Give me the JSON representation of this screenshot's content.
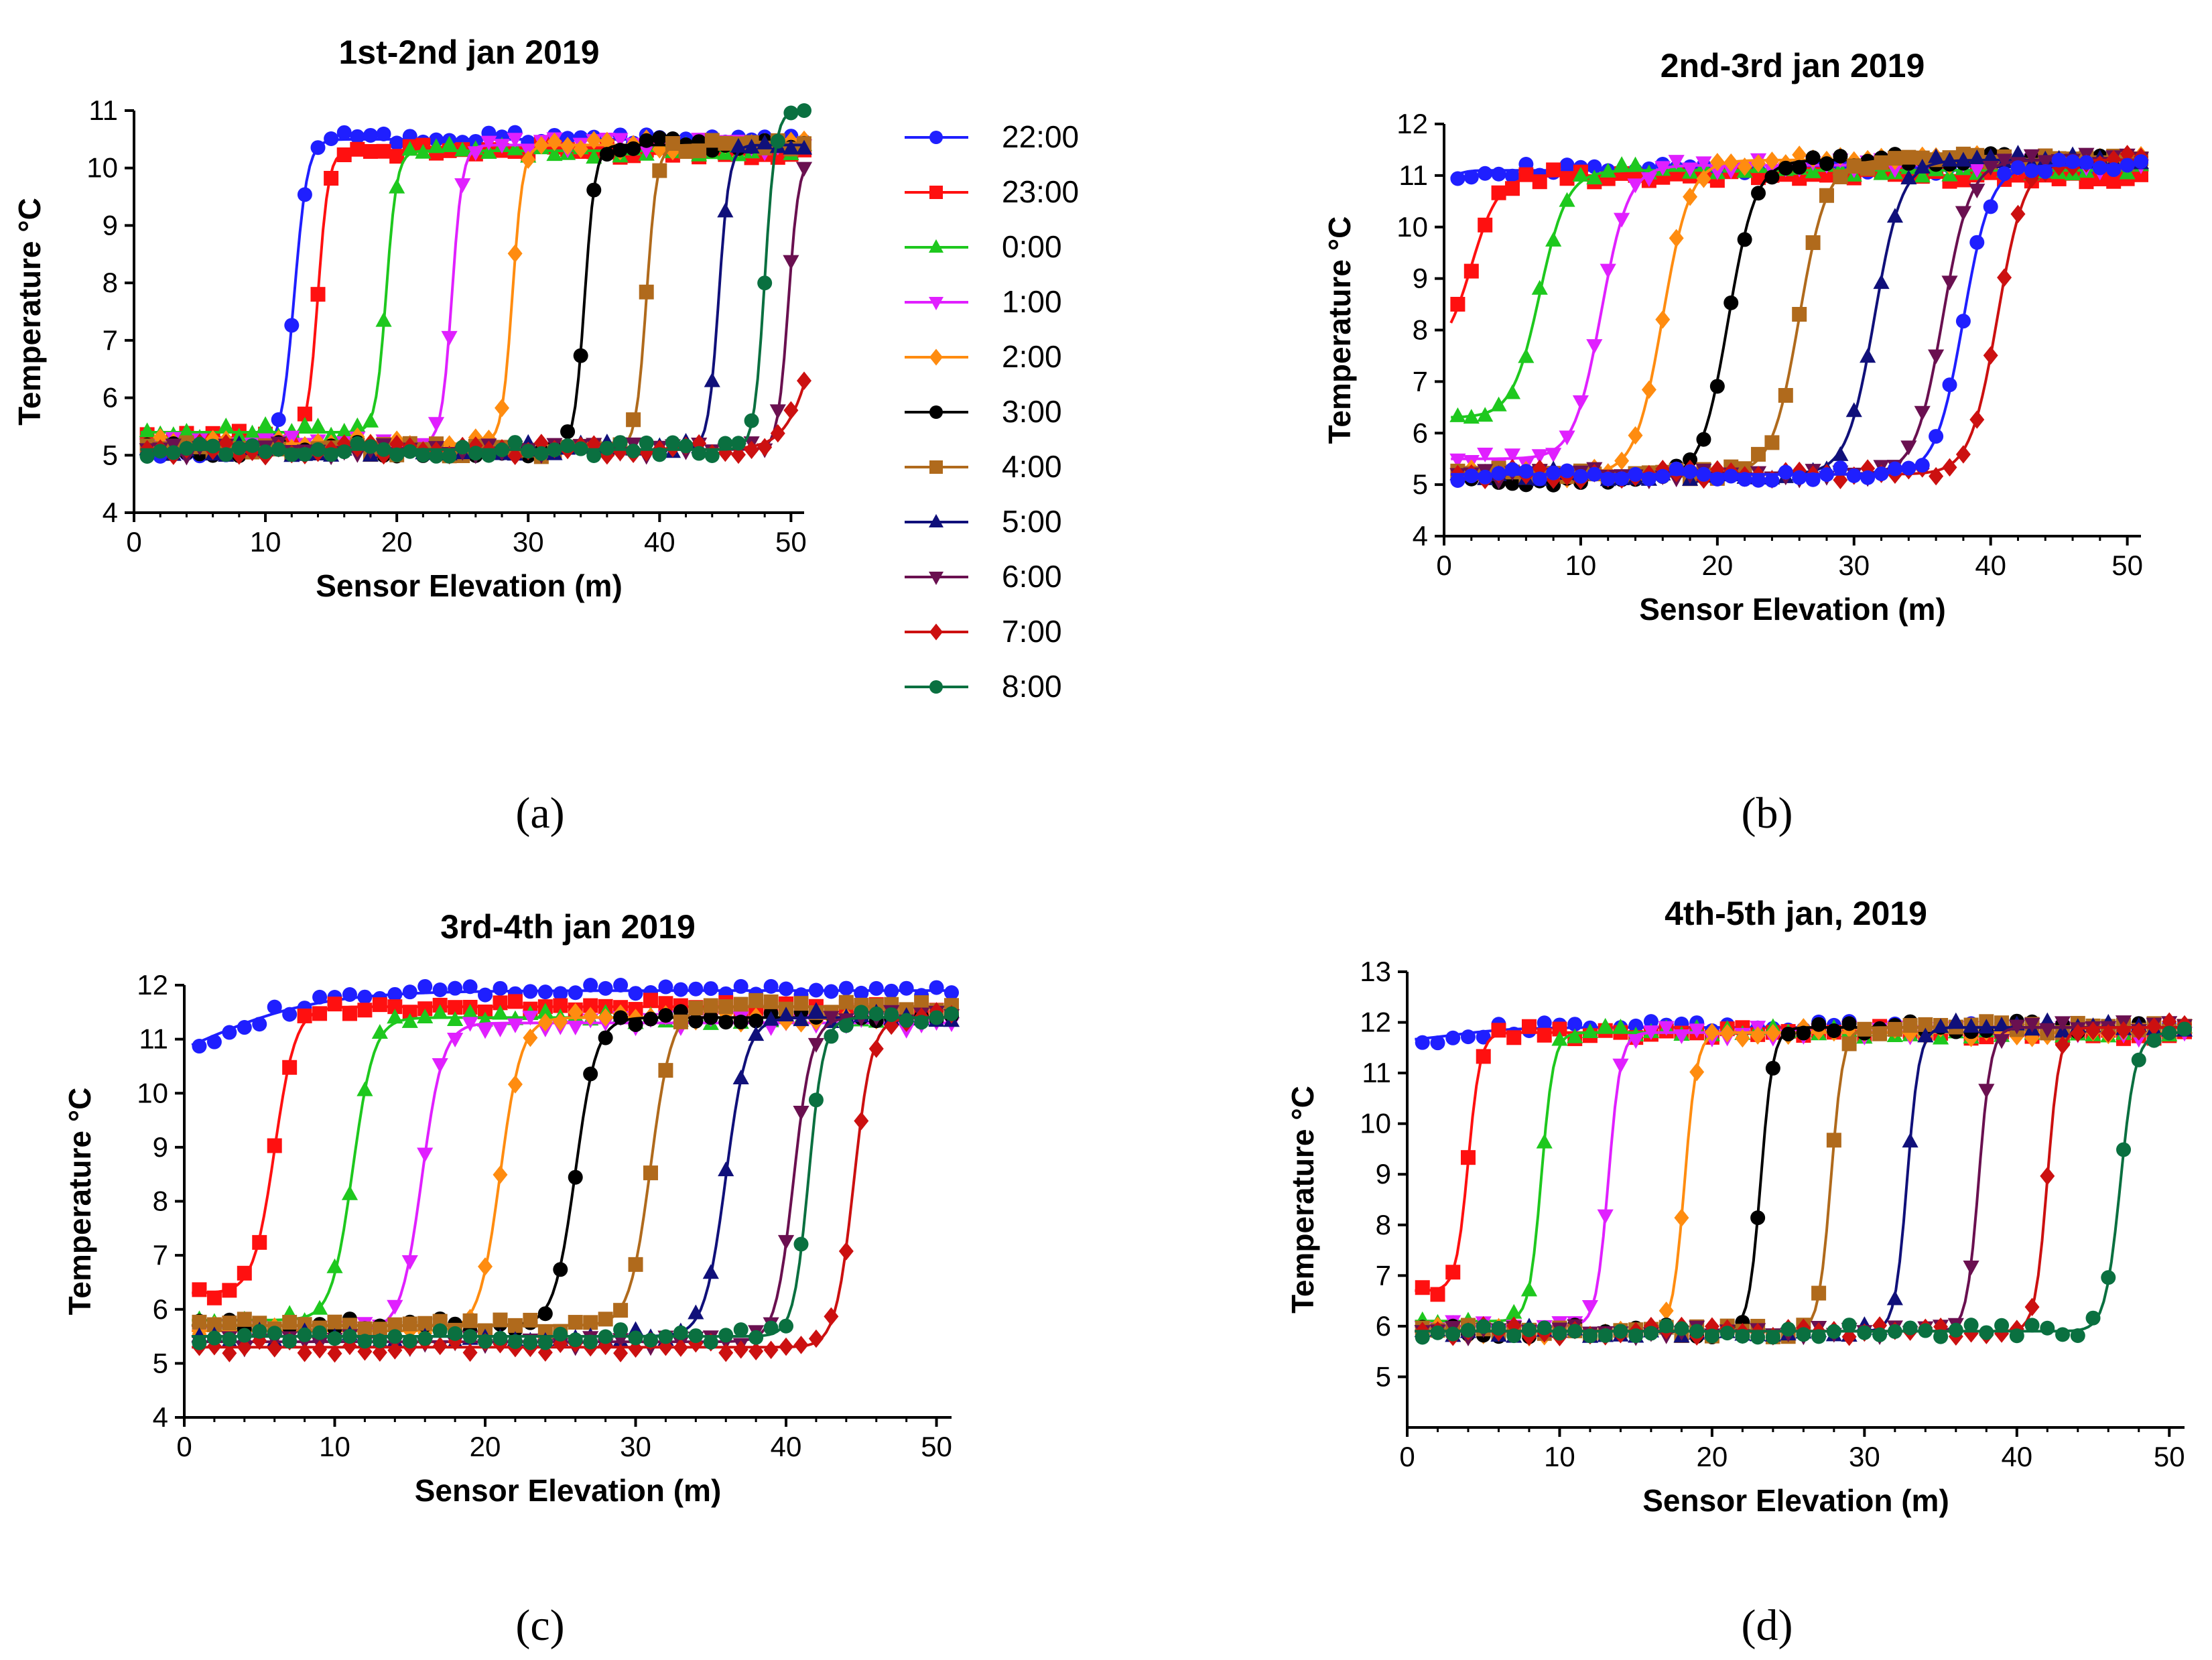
{
  "figure": {
    "captions": [
      "(a)",
      "(b)",
      "(c)",
      "(d)"
    ]
  },
  "chart_data": [
    {
      "panel": "a",
      "type": "scatter",
      "title": "1st-2nd jan 2019",
      "xlabel": "Sensor Elevation (m)",
      "ylabel": "Temperature °C",
      "xlim": [
        0,
        51
      ],
      "ylim": [
        4,
        11
      ],
      "xticks": [
        0,
        10,
        20,
        30,
        40,
        50
      ],
      "yticks": [
        4,
        5,
        6,
        7,
        8,
        9,
        10,
        11
      ],
      "legend_position": "right",
      "series": [
        {
          "name": "22:00",
          "color": "#1f1fff",
          "marker": "circle",
          "base": 5.1,
          "top": 10.5,
          "mid": 12.2,
          "width": 0.5
        },
        {
          "name": "23:00",
          "color": "#ff1010",
          "marker": "square",
          "base": 5.3,
          "top": 10.3,
          "mid": 14.0,
          "width": 0.4
        },
        {
          "name": "0:00",
          "color": "#1ec81e",
          "marker": "triangle-up",
          "base": 5.4,
          "top": 10.3,
          "mid": 19.2,
          "width": 0.4
        },
        {
          "name": "1:00",
          "color": "#e020ff",
          "marker": "triangle-down",
          "base": 5.2,
          "top": 10.4,
          "mid": 24.2,
          "width": 0.4
        },
        {
          "name": "2:00",
          "color": "#ff8c10",
          "marker": "diamond",
          "base": 5.2,
          "top": 10.4,
          "mid": 28.8,
          "width": 0.4
        },
        {
          "name": "3:00",
          "color": "#000000",
          "marker": "circle",
          "base": 5.1,
          "top": 10.4,
          "mid": 34.3,
          "width": 0.4
        },
        {
          "name": "4:00",
          "color": "#b06a1c",
          "marker": "square",
          "base": 5.1,
          "top": 10.4,
          "mid": 39.0,
          "width": 0.4
        },
        {
          "name": "5:00",
          "color": "#10107a",
          "marker": "triangle-up",
          "base": 5.1,
          "top": 10.4,
          "mid": 44.5,
          "width": 0.4
        },
        {
          "name": "6:00",
          "color": "#6a1050",
          "marker": "triangle-down",
          "base": 5.1,
          "top": 10.2,
          "mid": 49.8,
          "width": 0.4
        },
        {
          "name": "7:00",
          "color": "#cc1010",
          "marker": "diamond",
          "base": 5.1,
          "top": 10.2,
          "mid": 52.5,
          "width": 1.2
        },
        {
          "name": "8:00",
          "color": "#0a7040",
          "marker": "circle",
          "base": 5.1,
          "top": 11.0,
          "mid": 48.0,
          "width": 0.4
        }
      ]
    },
    {
      "panel": "b",
      "type": "scatter",
      "title": "2nd-3rd jan 2019",
      "xlabel": "Sensor Elevation (m)",
      "ylabel": "Temperature °C",
      "xlim": [
        0,
        51
      ],
      "ylim": [
        4,
        12
      ],
      "xticks": [
        0,
        10,
        20,
        30,
        40,
        50
      ],
      "yticks": [
        4,
        5,
        6,
        7,
        8,
        9,
        10,
        11,
        12
      ],
      "series": [
        {
          "name": "22:00",
          "color": "#1f1fff",
          "marker": "circle",
          "base": 10.8,
          "top": 11.1,
          "mid": 0.5,
          "width": 0.5
        },
        {
          "name": "23:00",
          "color": "#ff1010",
          "marker": "square",
          "base": 7.5,
          "top": 11.0,
          "mid": 2.0,
          "width": 1.0
        },
        {
          "name": "0:00",
          "color": "#1ec81e",
          "marker": "triangle-up",
          "base": 6.3,
          "top": 11.1,
          "mid": 7.0,
          "width": 1.0
        },
        {
          "name": "1:00",
          "color": "#e020ff",
          "marker": "triangle-down",
          "base": 5.5,
          "top": 11.2,
          "mid": 11.5,
          "width": 1.0
        },
        {
          "name": "2:00",
          "color": "#ff8c10",
          "marker": "diamond",
          "base": 5.2,
          "top": 11.3,
          "mid": 16.0,
          "width": 1.0
        },
        {
          "name": "3:00",
          "color": "#000000",
          "marker": "circle",
          "base": 5.1,
          "top": 11.3,
          "mid": 20.8,
          "width": 1.0
        },
        {
          "name": "4:00",
          "color": "#b06a1c",
          "marker": "square",
          "base": 5.2,
          "top": 11.3,
          "mid": 26.0,
          "width": 1.0
        },
        {
          "name": "5:00",
          "color": "#10107a",
          "marker": "triangle-up",
          "base": 5.2,
          "top": 11.3,
          "mid": 31.5,
          "width": 1.0
        },
        {
          "name": "6:00",
          "color": "#6a1050",
          "marker": "triangle-down",
          "base": 5.2,
          "top": 11.3,
          "mid": 36.5,
          "width": 1.0
        },
        {
          "name": "7:00",
          "color": "#cc1010",
          "marker": "diamond",
          "base": 5.2,
          "top": 11.3,
          "mid": 40.5,
          "width": 1.0
        },
        {
          "name": "8:00",
          "color": "#1f1fff",
          "marker": "circle",
          "base": 5.2,
          "top": 11.2,
          "mid": 38.0,
          "width": 1.0
        }
      ]
    },
    {
      "panel": "c",
      "type": "scatter",
      "title": "3rd-4th jan 2019",
      "xlabel": "Sensor Elevation (m)",
      "ylabel": "Temperature °C",
      "xlim": [
        0,
        51
      ],
      "ylim": [
        4,
        12
      ],
      "xticks": [
        0,
        10,
        20,
        30,
        40,
        50
      ],
      "yticks": [
        4,
        5,
        6,
        7,
        8,
        9,
        10,
        11,
        12
      ],
      "series": [
        {
          "name": "22:00",
          "color": "#1f1fff",
          "marker": "circle",
          "base": 10.0,
          "top": 11.9,
          "mid": 1.0,
          "width": 4.0
        },
        {
          "name": "23:00",
          "color": "#ff1010",
          "marker": "square",
          "base": 6.3,
          "top": 11.6,
          "mid": 6.0,
          "width": 0.7
        },
        {
          "name": "0:00",
          "color": "#1ec81e",
          "marker": "triangle-up",
          "base": 5.8,
          "top": 11.4,
          "mid": 11.2,
          "width": 0.7
        },
        {
          "name": "1:00",
          "color": "#e020ff",
          "marker": "triangle-down",
          "base": 5.6,
          "top": 11.3,
          "mid": 15.8,
          "width": 0.7
        },
        {
          "name": "2:00",
          "color": "#ff8c10",
          "marker": "diamond",
          "base": 5.6,
          "top": 11.4,
          "mid": 21.0,
          "width": 0.7
        },
        {
          "name": "3:00",
          "color": "#000000",
          "marker": "circle",
          "base": 5.7,
          "top": 11.4,
          "mid": 26.0,
          "width": 0.7
        },
        {
          "name": "4:00",
          "color": "#b06a1c",
          "marker": "square",
          "base": 5.7,
          "top": 11.6,
          "mid": 31.0,
          "width": 0.7
        },
        {
          "name": "5:00",
          "color": "#10107a",
          "marker": "triangle-up",
          "base": 5.5,
          "top": 11.4,
          "mid": 36.0,
          "width": 0.7
        },
        {
          "name": "6:00",
          "color": "#6a1050",
          "marker": "triangle-down",
          "base": 5.4,
          "top": 11.4,
          "mid": 40.5,
          "width": 0.6
        },
        {
          "name": "7:00",
          "color": "#cc1010",
          "marker": "diamond",
          "base": 5.3,
          "top": 11.4,
          "mid": 44.5,
          "width": 0.6
        },
        {
          "name": "8:00",
          "color": "#0a7040",
          "marker": "circle",
          "base": 5.5,
          "top": 11.4,
          "mid": 41.5,
          "width": 0.5
        }
      ]
    },
    {
      "panel": "d",
      "type": "scatter",
      "title": "4th-5th jan, 2019",
      "xlabel": "Sensor Elevation (m)",
      "ylabel": "Temperature °C",
      "xlim": [
        0,
        51
      ],
      "ylim": [
        4,
        13
      ],
      "xticks": [
        0,
        10,
        20,
        30,
        40,
        50
      ],
      "yticks": [
        5,
        6,
        7,
        8,
        9,
        10,
        11,
        12,
        13
      ],
      "series": [
        {
          "name": "22:00",
          "color": "#1f1fff",
          "marker": "circle",
          "base": 11.6,
          "top": 11.9,
          "mid": 3.0,
          "width": 2.0
        },
        {
          "name": "23:00",
          "color": "#ff1010",
          "marker": "square",
          "base": 6.7,
          "top": 11.8,
          "mid": 4.0,
          "width": 0.4
        },
        {
          "name": "0:00",
          "color": "#1ec81e",
          "marker": "triangle-up",
          "base": 6.1,
          "top": 11.8,
          "mid": 8.8,
          "width": 0.4
        },
        {
          "name": "1:00",
          "color": "#e020ff",
          "marker": "triangle-down",
          "base": 6.0,
          "top": 11.8,
          "mid": 13.2,
          "width": 0.4
        },
        {
          "name": "2:00",
          "color": "#ff8c10",
          "marker": "diamond",
          "base": 5.9,
          "top": 11.8,
          "mid": 18.2,
          "width": 0.4
        },
        {
          "name": "3:00",
          "color": "#000000",
          "marker": "circle",
          "base": 5.9,
          "top": 11.9,
          "mid": 23.2,
          "width": 0.4
        },
        {
          "name": "4:00",
          "color": "#b06a1c",
          "marker": "square",
          "base": 5.9,
          "top": 11.9,
          "mid": 27.8,
          "width": 0.4
        },
        {
          "name": "5:00",
          "color": "#10107a",
          "marker": "triangle-up",
          "base": 5.9,
          "top": 11.9,
          "mid": 32.8,
          "width": 0.4
        },
        {
          "name": "6:00",
          "color": "#6a1050",
          "marker": "triangle-down",
          "base": 5.9,
          "top": 11.9,
          "mid": 37.5,
          "width": 0.4
        },
        {
          "name": "7:00",
          "color": "#cc1010",
          "marker": "diamond",
          "base": 5.9,
          "top": 11.9,
          "mid": 42.0,
          "width": 0.4
        },
        {
          "name": "8:00",
          "color": "#0a7040",
          "marker": "circle",
          "base": 5.9,
          "top": 11.8,
          "mid": 46.8,
          "width": 0.5
        }
      ]
    }
  ]
}
